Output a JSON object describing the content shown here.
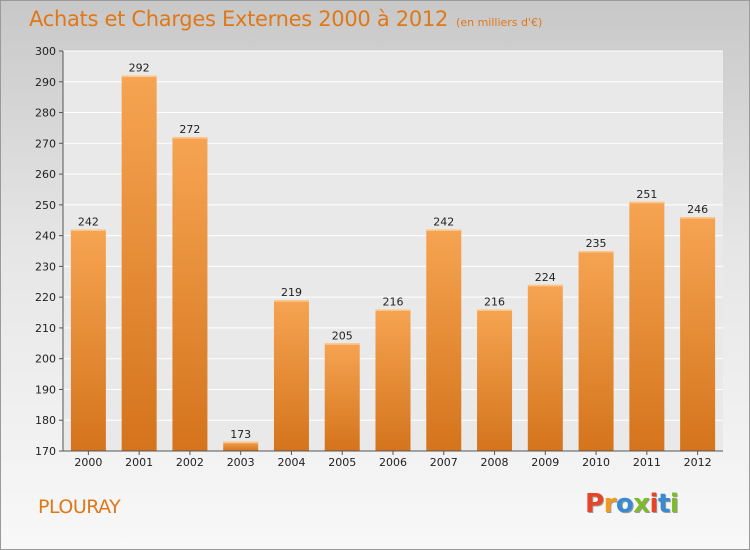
{
  "header": {
    "title": "Achats et Charges Externes 2000 à 2012",
    "subtitle": "(en milliers d'€)"
  },
  "footer": {
    "commune": "PLOURAY",
    "brand_logo": "Proxiti"
  },
  "colors": {
    "accent": "#e07818",
    "bar_light": "#f6a452",
    "bar_dark": "#d4741c",
    "logo_letters": [
      "#e6452a",
      "#f19a1e",
      "#3a8ad1",
      "#7dbb2a",
      "#e6452a",
      "#3a8ad1",
      "#7dbb2a"
    ]
  },
  "chart_data": {
    "type": "bar",
    "title": "Achats et Charges Externes 2000 à 2012",
    "subtitle": "(en milliers d'€)",
    "categories": [
      "2000",
      "2001",
      "2002",
      "2003",
      "2004",
      "2005",
      "2006",
      "2007",
      "2008",
      "2009",
      "2010",
      "2011",
      "2012"
    ],
    "values": [
      242,
      292,
      272,
      173,
      219,
      205,
      216,
      242,
      216,
      224,
      235,
      251,
      246
    ],
    "ylim": [
      170,
      300
    ],
    "yticks": [
      170,
      180,
      190,
      200,
      210,
      220,
      230,
      240,
      250,
      260,
      270,
      280,
      290,
      300
    ],
    "grid": true,
    "xlabel": "",
    "ylabel": ""
  }
}
